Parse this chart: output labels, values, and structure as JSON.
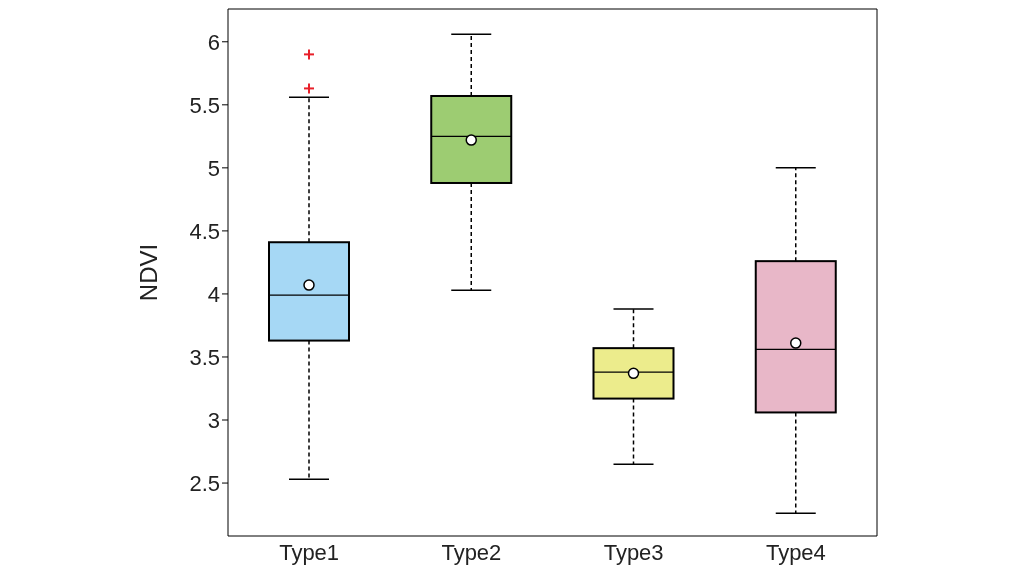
{
  "chart_data": {
    "type": "box",
    "ylabel": "NDVI",
    "categories": [
      "Type1",
      "Type2",
      "Type3",
      "Type4"
    ],
    "boxes": [
      {
        "low": 2.53,
        "q1": 3.63,
        "median": 3.99,
        "q3": 4.41,
        "high": 5.56,
        "mean": 4.07,
        "outliers": [
          5.63,
          5.9
        ]
      },
      {
        "low": 4.03,
        "q1": 4.88,
        "median": 5.25,
        "q3": 5.57,
        "high": 6.06,
        "mean": 5.22
      },
      {
        "low": 2.65,
        "q1": 3.17,
        "median": 3.38,
        "q3": 3.57,
        "high": 3.88,
        "mean": 3.37
      },
      {
        "low": 2.26,
        "q1": 3.06,
        "median": 3.56,
        "q3": 4.26,
        "high": 5.0,
        "mean": 3.61
      }
    ],
    "colors": [
      "#a6d8f5",
      "#9dcc72",
      "#ecec8c",
      "#e8b7c8"
    ],
    "color": "#e8202a",
    "ylim": [
      2.08,
      6.26
    ],
    "yticks": [
      2.5,
      3,
      3.5,
      4,
      4.5,
      5,
      5.5,
      6
    ],
    "grid": false
  }
}
